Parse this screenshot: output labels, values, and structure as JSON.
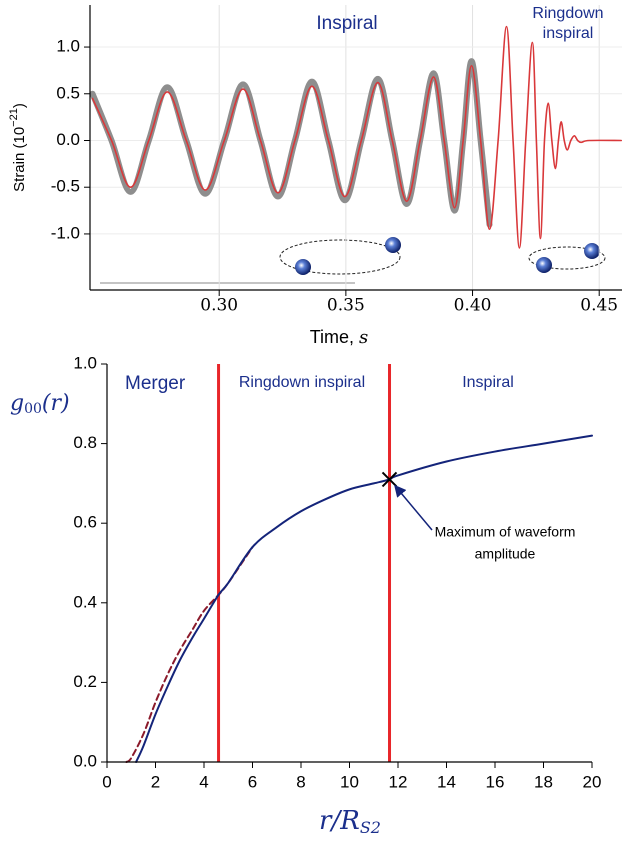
{
  "chart_data": [
    {
      "type": "line",
      "ylabel": [
        "Strain (10",
        "−21",
        ")"
      ],
      "xlabel": [
        "Time, ",
        "s"
      ],
      "annotations": [
        [
          "Inspiral"
        ],
        [
          "Ringdown",
          "inspiral"
        ]
      ],
      "xlim": [
        0.249,
        0.459
      ],
      "ylim": [
        -1.6,
        1.45
      ],
      "xticks": [
        {
          "value": 0.3,
          "label": "0.30"
        },
        0.35,
        {
          "value": 0.4,
          "label": "0.40"
        },
        0.45
      ],
      "yticks": [
        {
          "value": 1,
          "label": "1.0"
        },
        0.5,
        {
          "value": 0,
          "label": "0.0"
        },
        -0.5,
        {
          "value": -1,
          "label": "-1.0"
        }
      ],
      "grid": true,
      "series": [
        {
          "color": "#8e8e8e",
          "width": 6,
          "x": [
            0.25,
            0.2575,
            0.265,
            0.2722,
            0.2795,
            0.287,
            0.2945,
            0.302,
            0.3094,
            0.3163,
            0.3232,
            0.3299,
            0.3366,
            0.3431,
            0.3496,
            0.3561,
            0.3626,
            0.3683,
            0.374,
            0.3793,
            0.3846,
            0.3888,
            0.3929,
            0.3963,
            0.3996,
            0.4032,
            0.4067
          ],
          "values": [
            0.5,
            0,
            -0.55,
            0,
            0.57,
            0,
            -0.57,
            0,
            0.6,
            0,
            -0.6,
            0,
            0.63,
            0,
            -0.64,
            0,
            0.66,
            0,
            -0.68,
            0,
            0.72,
            0,
            -0.75,
            0,
            0.85,
            0,
            -0.9
          ]
        },
        {
          "color": "#d9383a",
          "width": 1.6,
          "x": [
            0.25,
            0.2575,
            0.265,
            0.2722,
            0.2795,
            0.287,
            0.2945,
            0.302,
            0.3094,
            0.3163,
            0.3232,
            0.3299,
            0.3366,
            0.3431,
            0.3496,
            0.3561,
            0.3626,
            0.3683,
            0.374,
            0.3793,
            0.3846,
            0.3888,
            0.3929,
            0.3963,
            0.3996,
            0.4032,
            0.4067,
            0.4101,
            0.4134,
            0.416,
            0.4185,
            0.421,
            0.4236,
            0.4252,
            0.4268,
            0.4284,
            0.4299,
            0.4313,
            0.4327,
            0.4339,
            0.435,
            0.4362,
            0.4374,
            0.4388,
            0.4402,
            0.4415,
            0.4429,
            0.4461,
            0.4587
          ],
          "values": [
            0.45,
            0,
            -0.5,
            0,
            0.52,
            0,
            -0.53,
            0,
            0.55,
            0,
            -0.56,
            0,
            0.58,
            0,
            -0.6,
            0,
            0.62,
            0,
            -0.65,
            0,
            0.68,
            0,
            -0.72,
            0,
            0.8,
            0,
            -0.95,
            0,
            1.22,
            0,
            -1.15,
            0,
            1.05,
            0,
            -1.05,
            0,
            0.4,
            0,
            -0.3,
            0,
            0.2,
            0,
            -0.1,
            0,
            0.05,
            0,
            -0.02,
            0,
            0
          ]
        }
      ]
    },
    {
      "type": "line",
      "ylabel": [
        "g",
        "00",
        "(r)"
      ],
      "xlabel": [
        "r/R",
        "S2"
      ],
      "annotations": [
        [
          "Merger"
        ],
        [
          "Ringdown inspiral"
        ],
        [
          "Inspiral"
        ],
        [
          "Maximum of waveform",
          "amplitude"
        ]
      ],
      "xlim": [
        0,
        20
      ],
      "ylim": [
        0,
        1.0
      ],
      "xticks": [
        0,
        2,
        4,
        6,
        8,
        10,
        12,
        14,
        16,
        18,
        20
      ],
      "yticks": [
        {
          "value": 0,
          "label": "0.0"
        },
        0.2,
        0.4,
        0.6,
        0.8,
        {
          "value": 1,
          "label": "1.0"
        }
      ],
      "vlines": [
        4.6,
        11.65
      ],
      "vline_color": "#e8262a",
      "marker": {
        "x": 11.65,
        "y": 0.71
      },
      "series": [
        {
          "color": "#8b1a2b",
          "width": 2,
          "dash": true,
          "x": [
            0.8,
            1,
            1.5,
            2,
            2.5,
            3,
            3.5,
            4,
            4.6,
            5,
            6
          ],
          "values": [
            0,
            0.01,
            0.07,
            0.15,
            0.22,
            0.28,
            0.33,
            0.38,
            0.42,
            0.45,
            0.54
          ]
        },
        {
          "color": "#14247a",
          "width": 2,
          "x": [
            1.2,
            1.5,
            2,
            2.5,
            3,
            3.5,
            4,
            4.6,
            5,
            6,
            7,
            8,
            9,
            10,
            11,
            11.65,
            12,
            14,
            16,
            18,
            20
          ],
          "values": [
            0,
            0.04,
            0.12,
            0.19,
            0.255,
            0.31,
            0.36,
            0.42,
            0.45,
            0.54,
            0.59,
            0.63,
            0.66,
            0.685,
            0.7,
            0.71,
            0.72,
            0.755,
            0.78,
            0.8,
            0.82
          ]
        }
      ]
    }
  ]
}
